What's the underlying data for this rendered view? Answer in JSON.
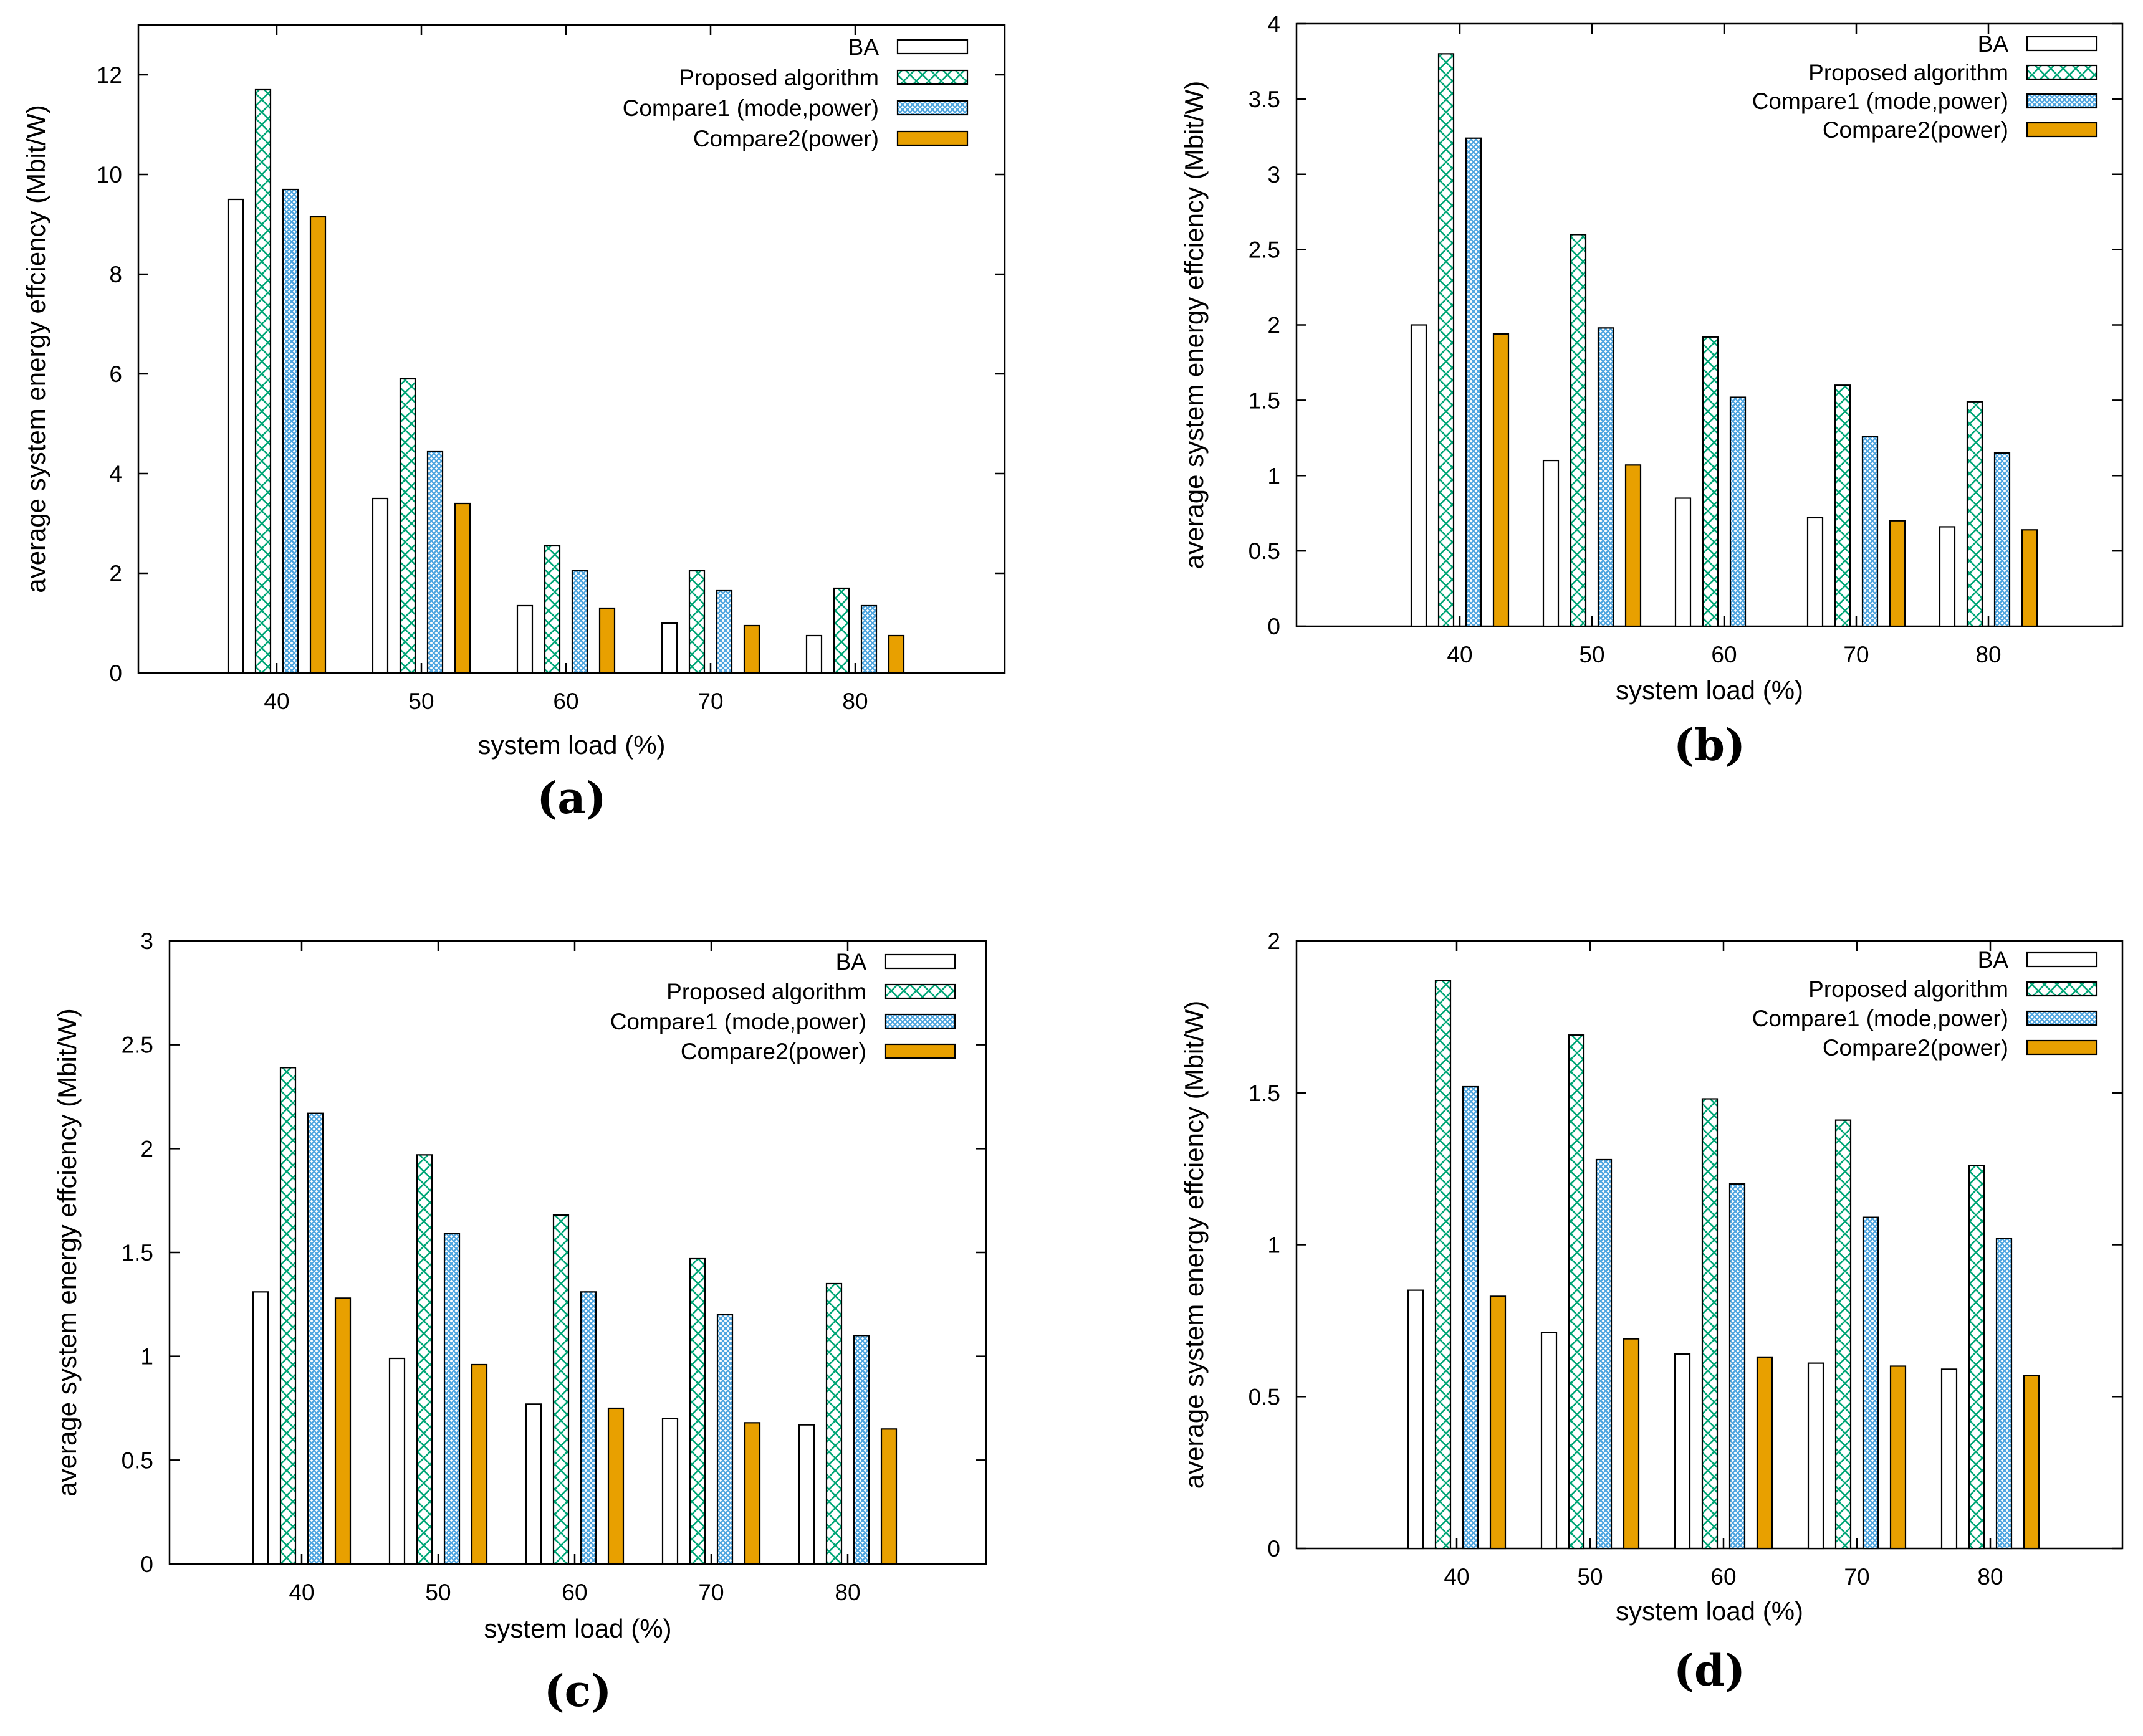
{
  "colors": {
    "ba": "#ffffff",
    "proposed": "#00a676",
    "compare1": "#4aa3df",
    "compare2": "#e8a000",
    "axis": "#000000"
  },
  "chart_data": [
    {
      "type": "bar",
      "panel": "(a)",
      "categories": [
        "40",
        "50",
        "60",
        "70",
        "80"
      ],
      "series": [
        {
          "name": "BA",
          "values": [
            9.5,
            3.5,
            1.35,
            1.0,
            0.75
          ]
        },
        {
          "name": "Proposed algorithm",
          "values": [
            11.7,
            5.9,
            2.55,
            2.05,
            1.7
          ]
        },
        {
          "name": "Compare1 (mode,power)",
          "values": [
            9.7,
            4.45,
            2.05,
            1.65,
            1.35
          ]
        },
        {
          "name": "Compare2(power)",
          "values": [
            9.15,
            3.4,
            1.3,
            0.95,
            0.75
          ]
        }
      ],
      "xlabel": "system load (%)",
      "ylabel": "average system energy effciency (Mbit/W)",
      "ylim": [
        0,
        13
      ],
      "yticks": [
        0,
        2,
        4,
        6,
        8,
        10,
        12
      ],
      "ytick_labels": [
        "0",
        "2",
        "4",
        "6",
        "8",
        "10",
        "12"
      ]
    },
    {
      "type": "bar",
      "panel": "(b)",
      "categories": [
        "40",
        "50",
        "60",
        "70",
        "80"
      ],
      "series": [
        {
          "name": "BA",
          "values": [
            2.0,
            1.1,
            0.85,
            0.72,
            0.66
          ]
        },
        {
          "name": "Proposed algorithm",
          "values": [
            3.8,
            2.6,
            1.92,
            1.6,
            1.49
          ]
        },
        {
          "name": "Compare1 (mode,power)",
          "values": [
            3.24,
            1.98,
            1.52,
            1.26,
            1.15
          ]
        },
        {
          "name": "Compare2(power)",
          "values": [
            1.94,
            1.07,
            0,
            0.7,
            0.64
          ]
        }
      ],
      "xlabel": "system load (%)",
      "ylabel": "average system energy effciency (Mbit/W)",
      "ylim": [
        0,
        4
      ],
      "yticks": [
        0,
        0.5,
        1,
        1.5,
        2,
        2.5,
        3,
        3.5,
        4
      ],
      "ytick_labels": [
        "0",
        "0.5",
        "1",
        "1.5",
        "2",
        "2.5",
        "3",
        "3.5",
        "4"
      ]
    },
    {
      "type": "bar",
      "panel": "(c)",
      "categories": [
        "40",
        "50",
        "60",
        "70",
        "80"
      ],
      "series": [
        {
          "name": "BA",
          "values": [
            1.31,
            0.99,
            0.77,
            0.7,
            0.67
          ]
        },
        {
          "name": "Proposed algorithm",
          "values": [
            2.39,
            1.97,
            1.68,
            1.47,
            1.35
          ]
        },
        {
          "name": "Compare1 (mode,power)",
          "values": [
            2.17,
            1.59,
            1.31,
            1.2,
            1.1
          ]
        },
        {
          "name": "Compare2(power)",
          "values": [
            1.28,
            0.96,
            0.75,
            0.68,
            0.65
          ]
        }
      ],
      "xlabel": "system load (%)",
      "ylabel": "average system energy effciency (Mbit/W)",
      "ylim": [
        0,
        3
      ],
      "yticks": [
        0,
        0.5,
        1,
        1.5,
        2,
        2.5,
        3
      ],
      "ytick_labels": [
        "0",
        "0.5",
        "1",
        "1.5",
        "2",
        "2.5",
        "3"
      ]
    },
    {
      "type": "bar",
      "panel": "(d)",
      "categories": [
        "40",
        "50",
        "60",
        "70",
        "80"
      ],
      "series": [
        {
          "name": "BA",
          "values": [
            0.85,
            0.71,
            0.64,
            0.61,
            0.59
          ]
        },
        {
          "name": "Proposed algorithm",
          "values": [
            1.87,
            1.69,
            1.48,
            1.41,
            1.26
          ]
        },
        {
          "name": "Compare1 (mode,power)",
          "values": [
            1.52,
            1.28,
            1.2,
            1.09,
            1.02
          ]
        },
        {
          "name": "Compare2(power)",
          "values": [
            0.83,
            0.69,
            0.63,
            0.6,
            0.57
          ]
        }
      ],
      "xlabel": "system load (%)",
      "ylabel": "average system energy effciency (Mbit/W)",
      "ylim": [
        0,
        2
      ],
      "yticks": [
        0,
        0.5,
        1,
        1.5,
        2
      ],
      "ytick_labels": [
        "0",
        "0.5",
        "1",
        "1.5",
        "2"
      ]
    }
  ]
}
